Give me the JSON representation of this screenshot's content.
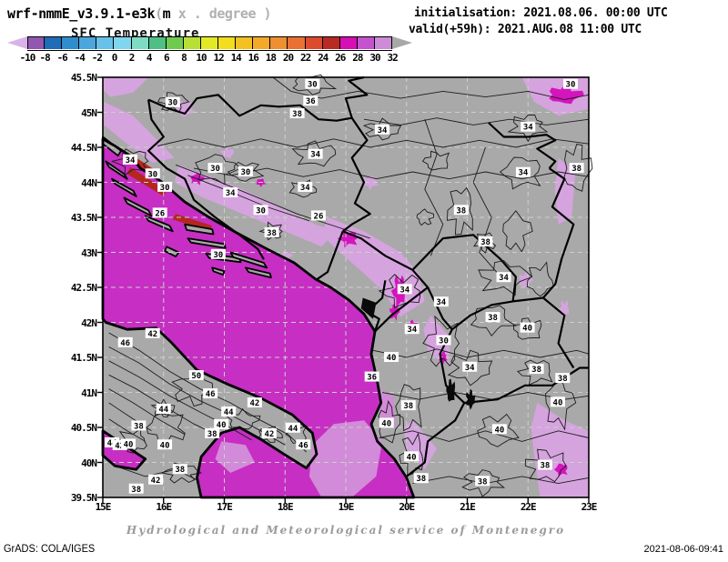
{
  "header": {
    "title_prefix": "wrf-nmmE_v3.9.1-e3k",
    "title_paren": "(",
    "title_m": "m",
    "units_note": "x . degree )",
    "variable_label": "SFC Temperature",
    "init_line": "initialisation: 2021.08.06. 00:00 UTC",
    "valid_line": "valid(+59h): 2021.AUG.08 11:00 UTC"
  },
  "colorbar": {
    "levels": [
      "-10",
      "-8",
      "-6",
      "-4",
      "-2",
      "0",
      "2",
      "4",
      "6",
      "8",
      "10",
      "12",
      "14",
      "16",
      "18",
      "20",
      "22",
      "24",
      "26",
      "28",
      "30",
      "32"
    ],
    "segment_colors": [
      "#9257b0",
      "#1f6db6",
      "#2f8ccd",
      "#4aa6dd",
      "#67c1e9",
      "#7fd6ee",
      "#7edcc3",
      "#4fbf85",
      "#6fca4f",
      "#b8df33",
      "#e3ea24",
      "#f2de1c",
      "#f3c120",
      "#f4a928",
      "#f08f30",
      "#ea7134",
      "#dd4b2d",
      "#b92a22",
      "#d60fb5",
      "#c553cf",
      "#cd8bd8"
    ],
    "under_arrow_color": "#d9b3e8",
    "over_arrow_color": "#a8a8a8"
  },
  "map": {
    "lat_ticks": [
      {
        "label": "45.5N",
        "value": 45.5
      },
      {
        "label": "45N",
        "value": 45
      },
      {
        "label": "44.5N",
        "value": 44.5
      },
      {
        "label": "44N",
        "value": 44
      },
      {
        "label": "43.5N",
        "value": 43.5
      },
      {
        "label": "43N",
        "value": 43
      },
      {
        "label": "42.5N",
        "value": 42.5
      },
      {
        "label": "42N",
        "value": 42
      },
      {
        "label": "41.5N",
        "value": 41.5
      },
      {
        "label": "41N",
        "value": 41
      },
      {
        "label": "40.5N",
        "value": 40.5
      },
      {
        "label": "40N",
        "value": 40
      },
      {
        "label": "39.5N",
        "value": 39.5
      }
    ],
    "lon_ticks": [
      {
        "label": "15E",
        "value": 15
      },
      {
        "label": "16E",
        "value": 16
      },
      {
        "label": "17E",
        "value": 17
      },
      {
        "label": "18E",
        "value": 18
      },
      {
        "label": "19E",
        "value": 19
      },
      {
        "label": "20E",
        "value": 20
      },
      {
        "label": "21E",
        "value": 21
      },
      {
        "label": "22E",
        "value": 22
      },
      {
        "label": "23E",
        "value": 23
      }
    ],
    "colors": {
      "land": "#a9a9a9",
      "sea": "#c72ec4",
      "sea_light": "#d28bd8",
      "plum": "#d5a3de",
      "magenta_core": "#d414bd",
      "channel_red": "#b3271f",
      "grid": "#c9d2c9",
      "contour": "#1c1c1c",
      "border": "#000000",
      "coast": "#000000",
      "lake": "#0a0a0a"
    },
    "contour_labels": [
      {
        "lon": 15.45,
        "lat": 44.32,
        "text": "34"
      },
      {
        "lon": 15.82,
        "lat": 44.12,
        "text": "30"
      },
      {
        "lon": 16.02,
        "lat": 43.93,
        "text": "30"
      },
      {
        "lon": 15.94,
        "lat": 43.56,
        "text": "26"
      },
      {
        "lon": 16.15,
        "lat": 45.14,
        "text": "30"
      },
      {
        "lon": 16.85,
        "lat": 44.2,
        "text": "30"
      },
      {
        "lon": 17.35,
        "lat": 44.15,
        "text": "30"
      },
      {
        "lon": 18.45,
        "lat": 45.4,
        "text": "30"
      },
      {
        "lon": 18.42,
        "lat": 45.16,
        "text": "36"
      },
      {
        "lon": 18.2,
        "lat": 44.98,
        "text": "38"
      },
      {
        "lon": 18.5,
        "lat": 44.4,
        "text": "34"
      },
      {
        "lon": 17.1,
        "lat": 43.85,
        "text": "34"
      },
      {
        "lon": 17.6,
        "lat": 43.6,
        "text": "30"
      },
      {
        "lon": 16.9,
        "lat": 42.97,
        "text": "30"
      },
      {
        "lon": 17.78,
        "lat": 43.28,
        "text": "38"
      },
      {
        "lon": 18.55,
        "lat": 43.52,
        "text": "26"
      },
      {
        "lon": 18.33,
        "lat": 43.93,
        "text": "34"
      },
      {
        "lon": 19.6,
        "lat": 44.75,
        "text": "34"
      },
      {
        "lon": 22.0,
        "lat": 44.79,
        "text": "34"
      },
      {
        "lon": 21.92,
        "lat": 44.14,
        "text": "34"
      },
      {
        "lon": 22.8,
        "lat": 44.2,
        "text": "38"
      },
      {
        "lon": 22.7,
        "lat": 45.4,
        "text": "30"
      },
      {
        "lon": 19.97,
        "lat": 42.47,
        "text": "34"
      },
      {
        "lon": 20.57,
        "lat": 42.29,
        "text": "34"
      },
      {
        "lon": 21.6,
        "lat": 42.64,
        "text": "34"
      },
      {
        "lon": 21.42,
        "lat": 42.07,
        "text": "38"
      },
      {
        "lon": 21.99,
        "lat": 41.92,
        "text": "40"
      },
      {
        "lon": 20.09,
        "lat": 41.9,
        "text": "34"
      },
      {
        "lon": 20.61,
        "lat": 41.74,
        "text": "30"
      },
      {
        "lon": 19.75,
        "lat": 41.5,
        "text": "40"
      },
      {
        "lon": 19.43,
        "lat": 41.22,
        "text": "36"
      },
      {
        "lon": 21.04,
        "lat": 41.36,
        "text": "34"
      },
      {
        "lon": 22.14,
        "lat": 41.33,
        "text": "38"
      },
      {
        "lon": 22.57,
        "lat": 41.2,
        "text": "38"
      },
      {
        "lon": 22.49,
        "lat": 40.86,
        "text": "40"
      },
      {
        "lon": 20.03,
        "lat": 40.81,
        "text": "38"
      },
      {
        "lon": 19.67,
        "lat": 40.56,
        "text": "40"
      },
      {
        "lon": 21.53,
        "lat": 40.47,
        "text": "40"
      },
      {
        "lon": 22.28,
        "lat": 39.96,
        "text": "38"
      },
      {
        "lon": 21.25,
        "lat": 39.73,
        "text": "38"
      },
      {
        "lon": 20.08,
        "lat": 40.08,
        "text": "40"
      },
      {
        "lon": 20.24,
        "lat": 39.77,
        "text": "38"
      },
      {
        "lon": 16.54,
        "lat": 41.24,
        "text": "50"
      },
      {
        "lon": 16.77,
        "lat": 40.98,
        "text": "46"
      },
      {
        "lon": 16.0,
        "lat": 40.76,
        "text": "44"
      },
      {
        "lon": 17.5,
        "lat": 40.85,
        "text": "42"
      },
      {
        "lon": 17.07,
        "lat": 40.72,
        "text": "44"
      },
      {
        "lon": 16.95,
        "lat": 40.54,
        "text": "40"
      },
      {
        "lon": 15.59,
        "lat": 40.52,
        "text": "38"
      },
      {
        "lon": 16.8,
        "lat": 40.41,
        "text": "38"
      },
      {
        "lon": 17.74,
        "lat": 40.41,
        "text": "42"
      },
      {
        "lon": 18.13,
        "lat": 40.49,
        "text": "44"
      },
      {
        "lon": 18.3,
        "lat": 40.25,
        "text": "46"
      },
      {
        "lon": 16.02,
        "lat": 40.25,
        "text": "40"
      },
      {
        "lon": 15.15,
        "lat": 40.28,
        "text": "44"
      },
      {
        "lon": 15.28,
        "lat": 40.24,
        "text": "42"
      },
      {
        "lon": 15.42,
        "lat": 40.26,
        "text": "40"
      },
      {
        "lon": 16.27,
        "lat": 39.9,
        "text": "38"
      },
      {
        "lon": 15.87,
        "lat": 39.75,
        "text": "42"
      },
      {
        "lon": 15.55,
        "lat": 39.62,
        "text": "38"
      },
      {
        "lon": 15.82,
        "lat": 41.84,
        "text": "42"
      },
      {
        "lon": 15.37,
        "lat": 41.71,
        "text": "46"
      },
      {
        "lon": 20.9,
        "lat": 43.6,
        "text": "38"
      },
      {
        "lon": 21.3,
        "lat": 43.15,
        "text": "38"
      }
    ]
  },
  "footer": {
    "service_line": "Hydrological and Meteorological service of Montenegro",
    "grads_credit": "GrADS: COLA/IGES",
    "timestamp": "2021-08-06-09:41"
  }
}
